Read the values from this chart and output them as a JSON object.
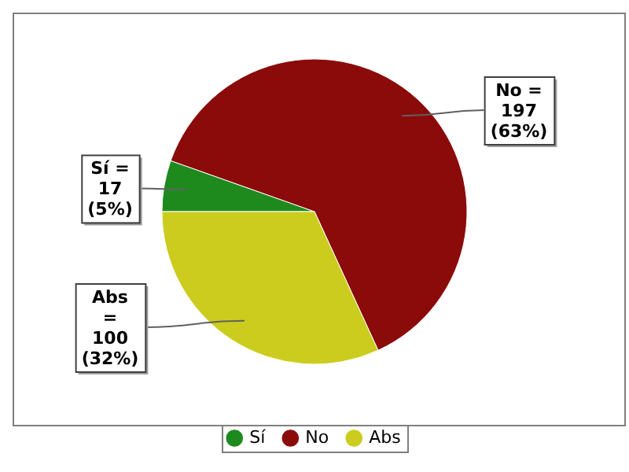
{
  "chart_data": {
    "type": "pie",
    "categories": [
      "Sí",
      "No",
      "Abs"
    ],
    "values": [
      17,
      197,
      100
    ],
    "colors": [
      "#1e8a1e",
      "#8b0a0a",
      "#cccc1e"
    ],
    "value_labels": [
      "Sí = 17 (5%)",
      "No = 197 (63%)",
      "Abs = 100 (32%)"
    ],
    "legend": "bottom"
  }
}
